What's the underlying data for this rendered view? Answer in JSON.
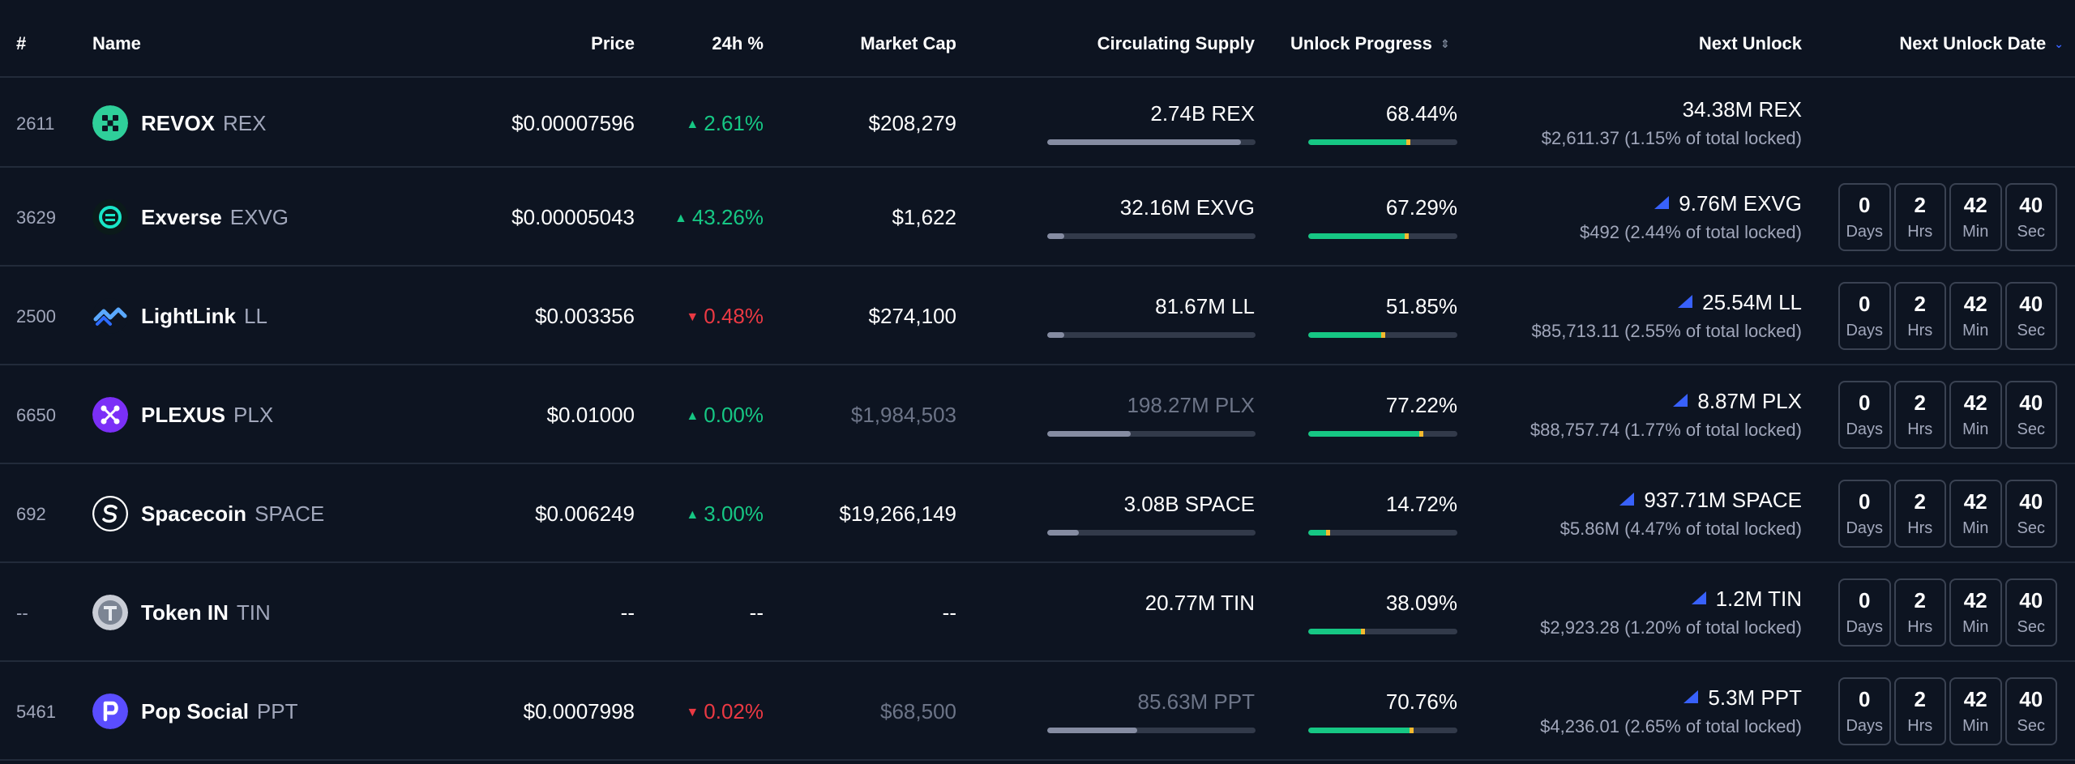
{
  "columns": {
    "rank": "#",
    "name": "Name",
    "price": "Price",
    "change": "24h %",
    "market_cap": "Market Cap",
    "circulating": "Circulating Supply",
    "unlock_progress": "Unlock Progress",
    "next_unlock": "Next Unlock",
    "next_unlock_date": "Next Unlock Date"
  },
  "countdown_labels": {
    "days": "Days",
    "hrs": "Hrs",
    "min": "Min",
    "sec": "Sec"
  },
  "colors": {
    "up": "#16c784",
    "down": "#ea3943",
    "accent": "#3861fb",
    "background": "#0d1421"
  },
  "rows": [
    {
      "rank": "2611",
      "name": "REVOX",
      "symbol": "REX",
      "icon": "revox-logo-icon",
      "price": "$0.00007596",
      "change": "2.61%",
      "direction": "up",
      "market_cap": "$208,279",
      "market_cap_dim": false,
      "circulating": "2.74B REX",
      "circ_dim": false,
      "circ_fill": 0.93,
      "unlock_pct": "68.44%",
      "unlock_fill": 0.6844,
      "next_amount": "34.38M REX",
      "next_detail": "$2,611.37 (1.15% of total locked)",
      "has_flag": false,
      "countdown": null
    },
    {
      "rank": "3629",
      "name": "Exverse",
      "symbol": "EXVG",
      "icon": "exverse-logo-icon",
      "price": "$0.00005043",
      "change": "43.26%",
      "direction": "up",
      "market_cap": "$1,622",
      "market_cap_dim": false,
      "circulating": "32.16M EXVG",
      "circ_dim": false,
      "circ_fill": 0.08,
      "unlock_pct": "67.29%",
      "unlock_fill": 0.6729,
      "next_amount": "9.76M EXVG",
      "next_detail": "$492 (2.44% of total locked)",
      "has_flag": true,
      "countdown": {
        "days": "0",
        "hrs": "2",
        "min": "42",
        "sec": "40"
      }
    },
    {
      "rank": "2500",
      "name": "LightLink",
      "symbol": "LL",
      "icon": "lightlink-logo-icon",
      "price": "$0.003356",
      "change": "0.48%",
      "direction": "down",
      "market_cap": "$274,100",
      "market_cap_dim": false,
      "circulating": "81.67M LL",
      "circ_dim": false,
      "circ_fill": 0.08,
      "unlock_pct": "51.85%",
      "unlock_fill": 0.5185,
      "next_amount": "25.54M LL",
      "next_detail": "$85,713.11 (2.55% of total locked)",
      "has_flag": true,
      "countdown": {
        "days": "0",
        "hrs": "2",
        "min": "42",
        "sec": "40"
      }
    },
    {
      "rank": "6650",
      "name": "PLEXUS",
      "symbol": "PLX",
      "icon": "plexus-logo-icon",
      "price": "$0.01000",
      "change": "0.00%",
      "direction": "up",
      "market_cap": "$1,984,503",
      "market_cap_dim": true,
      "circulating": "198.27M PLX",
      "circ_dim": true,
      "circ_fill": 0.4,
      "unlock_pct": "77.22%",
      "unlock_fill": 0.7722,
      "next_amount": "8.87M PLX",
      "next_detail": "$88,757.74 (1.77% of total locked)",
      "has_flag": true,
      "countdown": {
        "days": "0",
        "hrs": "2",
        "min": "42",
        "sec": "40"
      }
    },
    {
      "rank": "692",
      "name": "Spacecoin",
      "symbol": "SPACE",
      "icon": "spacecoin-logo-icon",
      "price": "$0.006249",
      "change": "3.00%",
      "direction": "up",
      "market_cap": "$19,266,149",
      "market_cap_dim": false,
      "circulating": "3.08B SPACE",
      "circ_dim": false,
      "circ_fill": 0.15,
      "unlock_pct": "14.72%",
      "unlock_fill": 0.1472,
      "next_amount": "937.71M SPACE",
      "next_detail": "$5.86M (4.47% of total locked)",
      "has_flag": true,
      "countdown": {
        "days": "0",
        "hrs": "2",
        "min": "42",
        "sec": "40"
      }
    },
    {
      "rank": "--",
      "name": "Token IN",
      "symbol": "TIN",
      "icon": "token-in-logo-icon",
      "price": "--",
      "change": "--",
      "direction": "none",
      "market_cap": "--",
      "market_cap_dim": false,
      "circulating": "20.77M TIN",
      "circ_dim": false,
      "circ_fill": null,
      "unlock_pct": "38.09%",
      "unlock_fill": 0.3809,
      "next_amount": "1.2M TIN",
      "next_detail": "$2,923.28 (1.20% of total locked)",
      "has_flag": true,
      "countdown": {
        "days": "0",
        "hrs": "2",
        "min": "42",
        "sec": "40"
      }
    },
    {
      "rank": "5461",
      "name": "Pop Social",
      "symbol": "PPT",
      "icon": "pop-social-logo-icon",
      "price": "$0.0007998",
      "change": "0.02%",
      "direction": "down",
      "market_cap": "$68,500",
      "market_cap_dim": true,
      "circulating": "85.63M PPT",
      "circ_dim": true,
      "circ_fill": 0.43,
      "unlock_pct": "70.76%",
      "unlock_fill": 0.7076,
      "next_amount": "5.3M PPT",
      "next_detail": "$4,236.01 (2.65% of total locked)",
      "has_flag": true,
      "countdown": {
        "days": "0",
        "hrs": "2",
        "min": "42",
        "sec": "40"
      }
    }
  ]
}
